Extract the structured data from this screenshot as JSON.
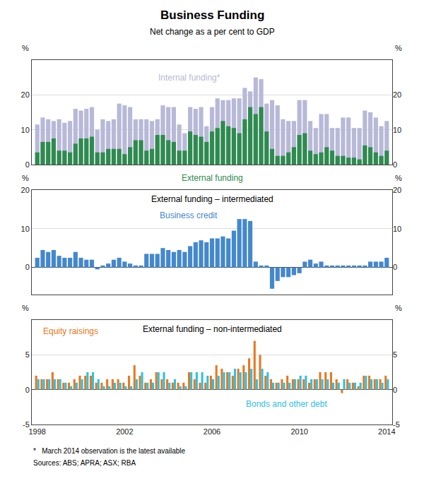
{
  "chart_data": [
    {
      "type": "bar",
      "title": "Business Funding",
      "subtitle": "Net change as a per cent to GDP",
      "x": [
        1998.0,
        1998.25,
        1998.5,
        1998.75,
        1999.0,
        1999.25,
        1999.5,
        1999.75,
        2000.0,
        2000.25,
        2000.5,
        2000.75,
        2001.0,
        2001.25,
        2001.5,
        2001.75,
        2002.0,
        2002.25,
        2002.5,
        2002.75,
        2003.0,
        2003.25,
        2003.5,
        2003.75,
        2004.0,
        2004.25,
        2004.5,
        2004.75,
        2005.0,
        2005.25,
        2005.5,
        2005.75,
        2006.0,
        2006.25,
        2006.5,
        2006.75,
        2007.0,
        2007.25,
        2007.5,
        2007.75,
        2008.0,
        2008.25,
        2008.5,
        2008.75,
        2009.0,
        2009.25,
        2009.5,
        2009.75,
        2010.0,
        2010.25,
        2010.5,
        2010.75,
        2011.0,
        2011.25,
        2011.5,
        2011.75,
        2012.0,
        2012.25,
        2012.5,
        2012.75,
        2013.0,
        2013.25,
        2013.5,
        2013.75,
        2014.0
      ],
      "series": [
        {
          "name": "Internal funding*",
          "color": "#b8b8d8",
          "values": [
            11.5,
            13.5,
            13.0,
            12.5,
            13.0,
            12.0,
            12.5,
            16.0,
            15.5,
            16.0,
            16.5,
            10.0,
            13.0,
            12.5,
            13.0,
            17.5,
            17.0,
            16.5,
            13.0,
            13.0,
            13.0,
            12.5,
            13.0,
            17.0,
            16.5,
            16.5,
            11.5,
            9.0,
            16.5,
            16.0,
            16.5,
            11.0,
            16.5,
            19.0,
            18.5,
            18.5,
            19.0,
            19.0,
            22.0,
            21.0,
            25.0,
            24.5,
            17.5,
            18.5,
            17.0,
            13.0,
            12.5,
            12.5,
            18.5,
            18.5,
            12.5,
            10.5,
            14.5,
            14.5,
            10.5,
            10.5,
            13.5,
            13.5,
            10.5,
            10.5,
            15.5,
            15.0,
            13.5,
            11.0,
            12.5
          ]
        },
        {
          "name": "External funding",
          "color": "#2e8b4e",
          "values": [
            3.5,
            6.5,
            6.5,
            7.5,
            4.0,
            4.0,
            3.5,
            6.0,
            7.5,
            7.5,
            8.0,
            3.5,
            3.5,
            4.5,
            4.5,
            4.5,
            3.0,
            5.0,
            7.0,
            7.0,
            4.0,
            4.5,
            8.5,
            8.5,
            7.0,
            6.5,
            4.0,
            4.0,
            9.5,
            8.5,
            8.0,
            6.5,
            9.5,
            10.5,
            12.5,
            11.0,
            10.5,
            9.0,
            13.0,
            16.5,
            14.5,
            16.5,
            9.5,
            4.5,
            2.5,
            2.5,
            3.5,
            5.0,
            8.5,
            9.0,
            4.0,
            3.0,
            3.5,
            5.0,
            4.0,
            2.5,
            2.5,
            2.0,
            2.0,
            1.5,
            5.5,
            5.0,
            3.5,
            2.5,
            4.0
          ]
        }
      ],
      "xlim": [
        1997.75,
        2014.25
      ],
      "xticks": [
        1998,
        2002,
        2006,
        2010,
        2014
      ],
      "ylim": [
        0,
        30
      ],
      "yticks": [
        0,
        10,
        20
      ],
      "y2lim": [
        0,
        30
      ],
      "y2ticks": [
        0,
        10,
        20
      ],
      "ylabel": "%",
      "y2label": "%",
      "grid": "y",
      "tick_labels": "y"
    },
    {
      "type": "bar",
      "title": "External funding – intermediated",
      "x": [
        1998.0,
        1998.25,
        1998.5,
        1998.75,
        1999.0,
        1999.25,
        1999.5,
        1999.75,
        2000.0,
        2000.25,
        2000.5,
        2000.75,
        2001.0,
        2001.25,
        2001.5,
        2001.75,
        2002.0,
        2002.25,
        2002.5,
        2002.75,
        2003.0,
        2003.25,
        2003.5,
        2003.75,
        2004.0,
        2004.25,
        2004.5,
        2004.75,
        2005.0,
        2005.25,
        2005.5,
        2005.75,
        2006.0,
        2006.25,
        2006.5,
        2006.75,
        2007.0,
        2007.25,
        2007.5,
        2007.75,
        2008.0,
        2008.25,
        2008.5,
        2008.75,
        2009.0,
        2009.25,
        2009.5,
        2009.75,
        2010.0,
        2010.25,
        2010.5,
        2010.75,
        2011.0,
        2011.25,
        2011.5,
        2011.75,
        2012.0,
        2012.25,
        2012.5,
        2012.75,
        2013.0,
        2013.25,
        2013.5,
        2013.75,
        2014.0
      ],
      "series": [
        {
          "name": "Business credit",
          "color": "#4488cc",
          "values": [
            2.5,
            4.5,
            4.0,
            4.5,
            3.0,
            2.5,
            2.5,
            4.0,
            2.5,
            2.0,
            2.0,
            -0.5,
            0.5,
            1.0,
            2.0,
            2.5,
            1.5,
            1.0,
            0.5,
            0.5,
            3.5,
            3.5,
            3.5,
            5.0,
            4.5,
            4.0,
            4.5,
            4.0,
            5.5,
            6.5,
            7.0,
            6.5,
            7.5,
            7.5,
            8.0,
            7.5,
            9.5,
            12.5,
            12.5,
            12.0,
            1.5,
            0.5,
            0.5,
            -5.5,
            -3.5,
            -2.5,
            -2.5,
            -2.0,
            -1.5,
            1.5,
            2.0,
            1.0,
            1.5,
            0.5,
            0.5,
            0.5,
            0.5,
            0.5,
            0.5,
            0.5,
            0.5,
            1.5,
            1.5,
            1.5,
            2.5
          ]
        }
      ],
      "xlim": [
        1997.75,
        2014.25
      ],
      "xticks": [
        1998,
        2002,
        2006,
        2010,
        2014
      ],
      "ylim": [
        -7,
        20
      ],
      "yticks": [
        0,
        10,
        20
      ],
      "y2lim": [
        -7,
        20
      ],
      "y2ticks": [
        0,
        10,
        20
      ],
      "ylabel": "%",
      "y2label": "%",
      "grid": "y",
      "tick_labels": "y"
    },
    {
      "type": "bar",
      "title": "External funding – non-intermediated",
      "x": [
        1998.0,
        1998.25,
        1998.5,
        1998.75,
        1999.0,
        1999.25,
        1999.5,
        1999.75,
        2000.0,
        2000.25,
        2000.5,
        2000.75,
        2001.0,
        2001.25,
        2001.5,
        2001.75,
        2002.0,
        2002.25,
        2002.5,
        2002.75,
        2003.0,
        2003.25,
        2003.5,
        2003.75,
        2004.0,
        2004.25,
        2004.5,
        2004.75,
        2005.0,
        2005.25,
        2005.5,
        2005.75,
        2006.0,
        2006.25,
        2006.5,
        2006.75,
        2007.0,
        2007.25,
        2007.5,
        2007.75,
        2008.0,
        2008.25,
        2008.5,
        2008.75,
        2009.0,
        2009.25,
        2009.5,
        2009.75,
        2010.0,
        2010.25,
        2010.5,
        2010.75,
        2011.0,
        2011.25,
        2011.5,
        2011.75,
        2012.0,
        2012.25,
        2012.5,
        2012.75,
        2013.0,
        2013.25,
        2013.5,
        2013.75,
        2014.0
      ],
      "series": [
        {
          "name": "Equity raisings",
          "color": "#e87820",
          "values": [
            2.0,
            1.5,
            1.5,
            2.5,
            1.5,
            1.0,
            1.0,
            1.5,
            2.0,
            2.0,
            2.0,
            1.0,
            1.0,
            1.5,
            1.5,
            1.5,
            1.0,
            2.0,
            3.5,
            2.0,
            1.0,
            1.5,
            2.5,
            1.5,
            1.5,
            1.0,
            1.0,
            1.0,
            2.5,
            1.5,
            1.0,
            1.0,
            2.0,
            3.5,
            3.0,
            2.5,
            2.0,
            3.0,
            3.5,
            4.5,
            7.0,
            5.0,
            2.0,
            1.5,
            1.0,
            1.5,
            2.0,
            1.5,
            1.5,
            1.5,
            1.0,
            1.5,
            2.5,
            2.5,
            2.5,
            1.5,
            -0.5,
            1.5,
            1.0,
            0.5,
            2.0,
            2.0,
            1.5,
            1.5,
            2.0
          ]
        },
        {
          "name": "Bonds and other debt",
          "color": "#30c0e0",
          "values": [
            1.5,
            1.5,
            1.5,
            1.5,
            1.5,
            1.0,
            0.5,
            1.0,
            1.5,
            2.5,
            2.5,
            1.5,
            0.5,
            0.5,
            1.0,
            1.0,
            0.5,
            0.5,
            1.5,
            2.5,
            1.0,
            1.0,
            2.5,
            2.5,
            1.0,
            1.5,
            0.5,
            0.5,
            2.5,
            2.5,
            2.5,
            2.0,
            1.5,
            2.0,
            2.5,
            2.5,
            3.0,
            2.5,
            2.5,
            3.0,
            1.5,
            3.0,
            2.5,
            1.0,
            1.0,
            1.0,
            1.0,
            1.5,
            2.0,
            2.0,
            1.5,
            1.5,
            1.5,
            1.5,
            1.0,
            1.0,
            1.5,
            1.0,
            1.0,
            1.0,
            2.0,
            1.5,
            1.5,
            1.0,
            1.5
          ]
        }
      ],
      "xlim": [
        1997.75,
        2014.25
      ],
      "xticks": [
        1998,
        2002,
        2006,
        2010,
        2014
      ],
      "ylim": [
        -5,
        10
      ],
      "yticks": [
        -5,
        0,
        5
      ],
      "y2lim": [
        -5,
        10
      ],
      "y2ticks": [
        -5,
        0,
        5
      ],
      "ylabel": "%",
      "y2label": "%",
      "grid": "y",
      "annotations": [
        "*   March 2014 observation is the latest available",
        "Sources: ABS; APRA; ASX; RBA"
      ]
    }
  ]
}
